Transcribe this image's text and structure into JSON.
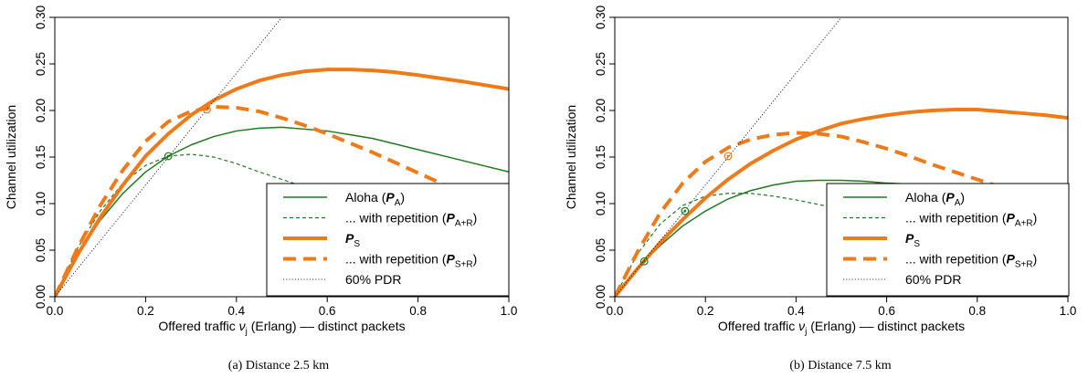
{
  "colors": {
    "aloha": "#217a21",
    "slotted": "#ee7a1a",
    "pdr": "#000000"
  },
  "legend": {
    "aloha_main": "Aloha (",
    "aloha_sym": "P",
    "aloha_sub": "A",
    "aloha_close": ")",
    "rep_text": "... with repetition (",
    "a_rep_sym": "P",
    "a_rep_sub": "A+R",
    "rep_close": ")",
    "s_sym": "P",
    "s_sub": "S",
    "s_rep_sym": "P",
    "s_rep_sub": "S+R",
    "pdr": "60% PDR"
  },
  "chart_data": [
    {
      "type": "line",
      "caption": "(a)  Distance 2.5 km",
      "xlabel_pre": "Offered traffic  ",
      "xlabel_sym": "ν",
      "xlabel_sub": "j",
      "xlabel_post": " (Erlang) –– distinct packets",
      "ylabel": "Channel utilization",
      "xlim": [
        0,
        1.0
      ],
      "ylim": [
        0,
        0.3
      ],
      "xticks": [
        "0.0",
        "0.2",
        "0.4",
        "0.6",
        "0.8",
        "1.0"
      ],
      "yticks": [
        "0.00",
        "0.05",
        "0.10",
        "0.15",
        "0.20",
        "0.25",
        "0.30"
      ],
      "series": [
        {
          "name": "Aloha (P_A)",
          "key": "aloha",
          "style": "solid",
          "x": [
            0,
            0.05,
            0.1,
            0.15,
            0.2,
            0.25,
            0.3,
            0.35,
            0.4,
            0.45,
            0.5,
            0.6,
            0.7,
            0.8,
            0.9,
            1.0
          ],
          "y": [
            0,
            0.045,
            0.082,
            0.111,
            0.134,
            0.151,
            0.163,
            0.172,
            0.178,
            0.181,
            0.182,
            0.178,
            0.17,
            0.158,
            0.146,
            0.134
          ]
        },
        {
          "name": "... with repetition (P_A+R)",
          "key": "aloha_rep",
          "style": "dashed",
          "x": [
            0,
            0.05,
            0.1,
            0.15,
            0.2,
            0.25,
            0.3,
            0.35,
            0.4,
            0.45,
            0.5,
            0.55,
            0.6,
            0.65
          ],
          "y": [
            0,
            0.052,
            0.092,
            0.122,
            0.141,
            0.151,
            0.153,
            0.15,
            0.143,
            0.134,
            0.126,
            0.118,
            0.112,
            0.106
          ]
        },
        {
          "name": "P_S",
          "key": "slotted",
          "style": "solid",
          "x": [
            0,
            0.05,
            0.1,
            0.15,
            0.2,
            0.25,
            0.3,
            0.35,
            0.4,
            0.45,
            0.5,
            0.55,
            0.6,
            0.65,
            0.7,
            0.75,
            0.8,
            0.9,
            1.0
          ],
          "y": [
            0,
            0.045,
            0.085,
            0.12,
            0.151,
            0.175,
            0.195,
            0.211,
            0.223,
            0.232,
            0.238,
            0.242,
            0.244,
            0.244,
            0.243,
            0.241,
            0.238,
            0.231,
            0.223
          ]
        },
        {
          "name": "... with repetition (P_S+R)",
          "key": "slotted_rep",
          "style": "dashed",
          "x": [
            0,
            0.05,
            0.1,
            0.15,
            0.2,
            0.25,
            0.3,
            0.35,
            0.4,
            0.45,
            0.5,
            0.55,
            0.6,
            0.65,
            0.7,
            0.75,
            0.8,
            0.85,
            0.87
          ],
          "y": [
            0,
            0.052,
            0.098,
            0.136,
            0.167,
            0.188,
            0.199,
            0.204,
            0.203,
            0.199,
            0.192,
            0.184,
            0.175,
            0.165,
            0.155,
            0.144,
            0.133,
            0.122,
            0.117
          ]
        },
        {
          "name": "60% PDR",
          "key": "pdr",
          "style": "dotted",
          "x": [
            0,
            0.5
          ],
          "y": [
            0,
            0.3
          ]
        }
      ],
      "markers": [
        {
          "series": "aloha",
          "x": 0.25,
          "y": 0.151
        },
        {
          "series": "slotted",
          "x": 0.335,
          "y": 0.201
        }
      ]
    },
    {
      "type": "line",
      "caption": "(b)  Distance 7.5 km",
      "xlabel_pre": "Offered traffic  ",
      "xlabel_sym": "ν",
      "xlabel_sub": "j",
      "xlabel_post": " (Erlang) –– distinct packets",
      "ylabel": "Channel utilization",
      "xlim": [
        0,
        1.0
      ],
      "ylim": [
        0,
        0.3
      ],
      "xticks": [
        "0.0",
        "0.2",
        "0.4",
        "0.6",
        "0.8",
        "1.0"
      ],
      "yticks": [
        "0.00",
        "0.05",
        "0.10",
        "0.15",
        "0.20",
        "0.25",
        "0.30"
      ],
      "series": [
        {
          "name": "Aloha (P_A)",
          "key": "aloha",
          "style": "solid",
          "x": [
            0,
            0.05,
            0.1,
            0.15,
            0.2,
            0.25,
            0.3,
            0.35,
            0.4,
            0.45,
            0.5,
            0.55,
            0.6,
            0.65,
            0.7
          ],
          "y": [
            0,
            0.03,
            0.055,
            0.076,
            0.092,
            0.105,
            0.114,
            0.12,
            0.124,
            0.125,
            0.125,
            0.124,
            0.122,
            0.121,
            0.12
          ]
        },
        {
          "name": "... with repetition (P_A+R)",
          "key": "aloha_rep",
          "style": "dashed",
          "x": [
            0,
            0.05,
            0.1,
            0.15,
            0.2,
            0.25,
            0.3,
            0.35,
            0.4,
            0.45,
            0.5
          ],
          "y": [
            0,
            0.046,
            0.078,
            0.098,
            0.108,
            0.111,
            0.111,
            0.108,
            0.104,
            0.099,
            0.094
          ]
        },
        {
          "name": "P_S",
          "key": "slotted",
          "style": "solid",
          "x": [
            0,
            0.05,
            0.1,
            0.15,
            0.2,
            0.25,
            0.3,
            0.35,
            0.4,
            0.45,
            0.5,
            0.55,
            0.6,
            0.65,
            0.7,
            0.75,
            0.8,
            0.85,
            0.9,
            0.95,
            1.0
          ],
          "y": [
            0,
            0.03,
            0.058,
            0.083,
            0.106,
            0.126,
            0.143,
            0.157,
            0.169,
            0.178,
            0.186,
            0.191,
            0.195,
            0.198,
            0.2,
            0.201,
            0.201,
            0.199,
            0.197,
            0.195,
            0.192
          ]
        },
        {
          "name": "... with repetition (P_S+R)",
          "key": "slotted_rep",
          "style": "dashed",
          "x": [
            0,
            0.05,
            0.1,
            0.15,
            0.2,
            0.25,
            0.3,
            0.35,
            0.4,
            0.45,
            0.5,
            0.55,
            0.6,
            0.65,
            0.7,
            0.75,
            0.8,
            0.85,
            0.9
          ],
          "y": [
            0,
            0.048,
            0.09,
            0.122,
            0.145,
            0.16,
            0.169,
            0.174,
            0.176,
            0.175,
            0.172,
            0.166,
            0.159,
            0.151,
            0.142,
            0.134,
            0.126,
            0.118,
            0.111
          ]
        },
        {
          "name": "60% PDR",
          "key": "pdr",
          "style": "dotted",
          "x": [
            0,
            0.5
          ],
          "y": [
            0,
            0.3
          ]
        }
      ],
      "markers": [
        {
          "series": "aloha",
          "x": 0.065,
          "y": 0.038
        },
        {
          "series": "aloha",
          "x": 0.155,
          "y": 0.092
        },
        {
          "series": "slotted",
          "x": 0.25,
          "y": 0.151
        }
      ]
    }
  ]
}
